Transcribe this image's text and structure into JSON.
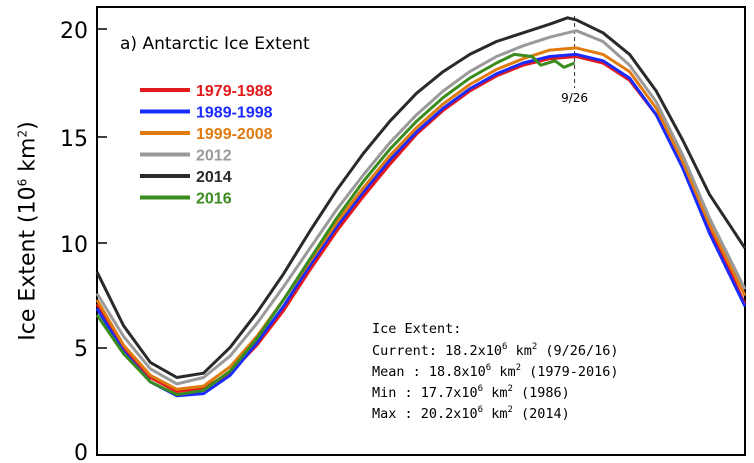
{
  "chart_data": {
    "type": "line",
    "title": "a) Antarctic Ice Extent",
    "ylabel_main": "Ice Extent (10",
    "ylabel_exp": "6",
    "ylabel_unit": " km",
    "ylabel_exp2": "2",
    "ylabel_close": ")",
    "ylim": [
      0,
      20.8
    ],
    "xlim": [
      0,
      365
    ],
    "yticks": [
      0,
      5,
      10,
      15,
      20
    ],
    "grid": false,
    "legend_position": "top-left",
    "marker_label": "9/26",
    "marker_day": 269,
    "series": [
      {
        "name": "1979-1988",
        "color": "#e31a1c",
        "points": [
          [
            0,
            7.0
          ],
          [
            15,
            5.0
          ],
          [
            30,
            3.6
          ],
          [
            45,
            2.95
          ],
          [
            60,
            3.1
          ],
          [
            75,
            3.8
          ],
          [
            90,
            5.1
          ],
          [
            105,
            6.7
          ],
          [
            120,
            8.6
          ],
          [
            135,
            10.4
          ],
          [
            150,
            12.0
          ],
          [
            165,
            13.5
          ],
          [
            180,
            14.9
          ],
          [
            195,
            16.0
          ],
          [
            210,
            16.9
          ],
          [
            225,
            17.6
          ],
          [
            240,
            18.1
          ],
          [
            255,
            18.4
          ],
          [
            270,
            18.5
          ],
          [
            285,
            18.2
          ],
          [
            300,
            17.4
          ],
          [
            315,
            15.8
          ],
          [
            330,
            13.5
          ],
          [
            345,
            10.6
          ],
          [
            365,
            7.0
          ]
        ]
      },
      {
        "name": "1989-1998",
        "color": "#1a2bff",
        "points": [
          [
            0,
            6.8
          ],
          [
            15,
            4.8
          ],
          [
            30,
            3.4
          ],
          [
            45,
            2.75
          ],
          [
            60,
            2.85
          ],
          [
            75,
            3.7
          ],
          [
            90,
            5.2
          ],
          [
            105,
            6.9
          ],
          [
            120,
            8.8
          ],
          [
            135,
            10.6
          ],
          [
            150,
            12.2
          ],
          [
            165,
            13.7
          ],
          [
            180,
            15.0
          ],
          [
            195,
            16.1
          ],
          [
            210,
            17.0
          ],
          [
            225,
            17.7
          ],
          [
            240,
            18.2
          ],
          [
            255,
            18.5
          ],
          [
            270,
            18.6
          ],
          [
            285,
            18.3
          ],
          [
            300,
            17.5
          ],
          [
            315,
            15.8
          ],
          [
            330,
            13.3
          ],
          [
            345,
            10.3
          ],
          [
            365,
            6.9
          ]
        ]
      },
      {
        "name": "1999-2008",
        "color": "#e07b10",
        "points": [
          [
            0,
            7.2
          ],
          [
            15,
            5.1
          ],
          [
            30,
            3.7
          ],
          [
            45,
            3.05
          ],
          [
            60,
            3.2
          ],
          [
            75,
            4.1
          ],
          [
            90,
            5.5
          ],
          [
            105,
            7.2
          ],
          [
            120,
            9.0
          ],
          [
            135,
            10.8
          ],
          [
            150,
            12.4
          ],
          [
            165,
            13.9
          ],
          [
            180,
            15.2
          ],
          [
            195,
            16.3
          ],
          [
            210,
            17.2
          ],
          [
            225,
            17.9
          ],
          [
            240,
            18.4
          ],
          [
            255,
            18.8
          ],
          [
            270,
            18.9
          ],
          [
            285,
            18.6
          ],
          [
            300,
            17.8
          ],
          [
            315,
            16.1
          ],
          [
            330,
            13.6
          ],
          [
            345,
            10.7
          ],
          [
            365,
            7.4
          ]
        ]
      },
      {
        "name": "2012",
        "color": "#9a9a9a",
        "points": [
          [
            0,
            7.5
          ],
          [
            15,
            5.5
          ],
          [
            30,
            4.0
          ],
          [
            45,
            3.3
          ],
          [
            60,
            3.6
          ],
          [
            75,
            4.6
          ],
          [
            90,
            6.1
          ],
          [
            105,
            7.8
          ],
          [
            120,
            9.6
          ],
          [
            135,
            11.4
          ],
          [
            150,
            13.0
          ],
          [
            165,
            14.5
          ],
          [
            180,
            15.8
          ],
          [
            195,
            16.9
          ],
          [
            210,
            17.8
          ],
          [
            225,
            18.5
          ],
          [
            240,
            19.0
          ],
          [
            255,
            19.4
          ],
          [
            270,
            19.7
          ],
          [
            285,
            19.2
          ],
          [
            300,
            18.1
          ],
          [
            315,
            16.4
          ],
          [
            330,
            13.9
          ],
          [
            345,
            11.0
          ],
          [
            365,
            7.7
          ]
        ]
      },
      {
        "name": "2014",
        "color": "#2a2a2a",
        "points": [
          [
            0,
            8.5
          ],
          [
            15,
            6.0
          ],
          [
            30,
            4.3
          ],
          [
            45,
            3.6
          ],
          [
            60,
            3.8
          ],
          [
            75,
            5.0
          ],
          [
            90,
            6.6
          ],
          [
            105,
            8.4
          ],
          [
            120,
            10.4
          ],
          [
            135,
            12.3
          ],
          [
            150,
            14.0
          ],
          [
            165,
            15.5
          ],
          [
            180,
            16.8
          ],
          [
            195,
            17.8
          ],
          [
            210,
            18.6
          ],
          [
            225,
            19.2
          ],
          [
            240,
            19.6
          ],
          [
            255,
            20.0
          ],
          [
            265,
            20.3
          ],
          [
            270,
            20.2
          ],
          [
            285,
            19.6
          ],
          [
            300,
            18.6
          ],
          [
            315,
            16.9
          ],
          [
            330,
            14.6
          ],
          [
            345,
            12.1
          ],
          [
            365,
            9.6
          ]
        ]
      },
      {
        "name": "2016",
        "color": "#3a8c1e",
        "points": [
          [
            0,
            6.5
          ],
          [
            15,
            4.7
          ],
          [
            30,
            3.4
          ],
          [
            45,
            2.8
          ],
          [
            60,
            3.0
          ],
          [
            75,
            3.9
          ],
          [
            90,
            5.4
          ],
          [
            105,
            7.2
          ],
          [
            120,
            9.1
          ],
          [
            135,
            11.0
          ],
          [
            150,
            12.7
          ],
          [
            165,
            14.2
          ],
          [
            180,
            15.5
          ],
          [
            195,
            16.6
          ],
          [
            210,
            17.5
          ],
          [
            225,
            18.2
          ],
          [
            235,
            18.6
          ],
          [
            245,
            18.5
          ],
          [
            250,
            18.1
          ],
          [
            258,
            18.3
          ],
          [
            263,
            18.0
          ],
          [
            269,
            18.2
          ]
        ]
      }
    ],
    "annotation": {
      "heading": "Ice Extent:",
      "current_label": "Current: 18.2x10",
      "current_rest": " km",
      "current_tail": " (9/26/16)",
      "mean_label": "Mean   : 18.8x10",
      "mean_rest": " km",
      "mean_tail": " (1979-2016)",
      "min_label": "Min    : 17.7x10",
      "min_rest": " km",
      "min_tail": " (1986)",
      "max_label": "Max    : 20.2x10",
      "max_rest": " km",
      "max_tail": " (2014)",
      "exp6": "6",
      "exp2": "2"
    }
  }
}
